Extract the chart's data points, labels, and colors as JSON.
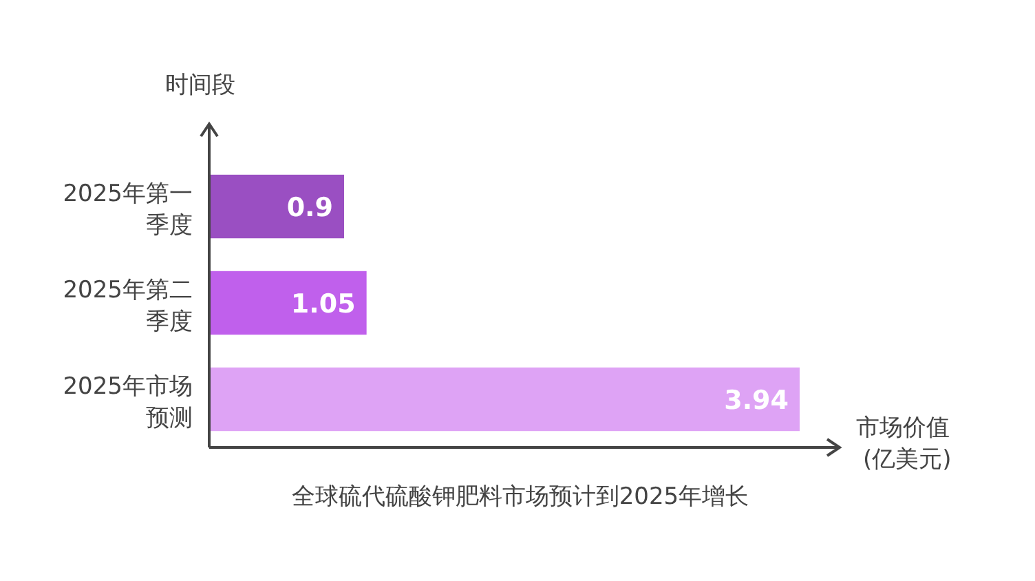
{
  "chart_data": {
    "type": "bar",
    "orientation": "horizontal",
    "title": "全球硫代硫酸钾肥料市场预计到2025年增长",
    "ylabel": "时间段",
    "xlabel": "市场价值 (亿美元)",
    "categories": [
      "2025年第一季度",
      "2025年第二季度",
      "2025年市场预测"
    ],
    "values": [
      0.9,
      1.05,
      3.94
    ],
    "colors": [
      "#9a4fc2",
      "#c060ec",
      "#dea3f5"
    ],
    "data_labels": true
  }
}
